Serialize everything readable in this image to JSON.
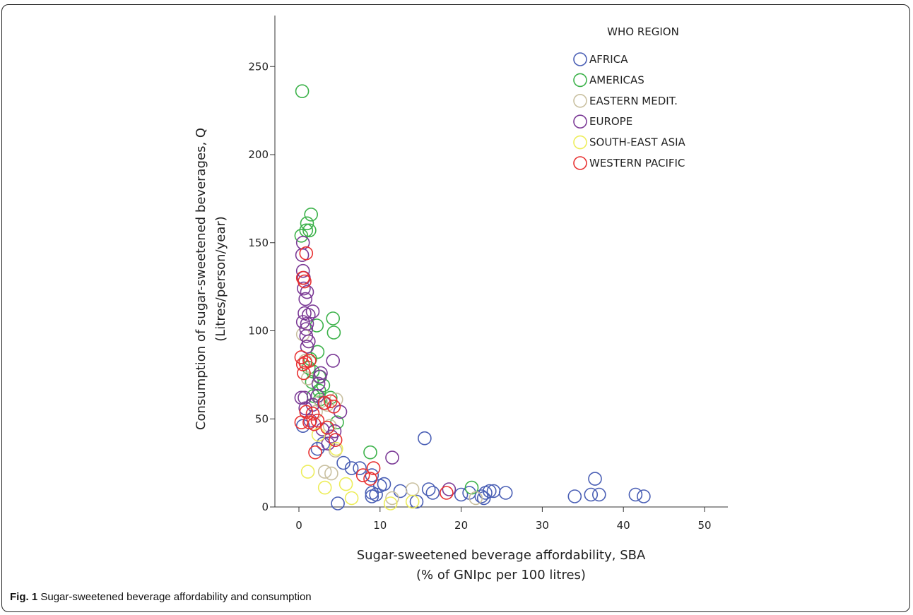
{
  "caption": {
    "label": "Fig. 1",
    "text": "Sugar-sweetened beverage affordability and consumption"
  },
  "chart_data": {
    "type": "scatter",
    "title": "",
    "xlabel_line1": "Sugar-sweetened beverage affordability, SBA",
    "xlabel_line2": "(% of GNIpc per 100 litres)",
    "ylabel_line1": "Consumption of sugar-sweetened beverages, Q",
    "ylabel_line2": "(Litres/person/year)",
    "xlim": [
      -3,
      53
    ],
    "ylim": [
      0,
      278
    ],
    "xticks": [
      0,
      10,
      20,
      30,
      40,
      50
    ],
    "yticks": [
      0,
      50,
      100,
      150,
      200,
      250
    ],
    "grid": false,
    "legend": {
      "title": "WHO REGION",
      "placement": "top-right"
    },
    "series": [
      {
        "name": "AFRICA",
        "color": "#4a5fb5",
        "points": [
          [
            15.5,
            39
          ],
          [
            36.5,
            16
          ],
          [
            5.5,
            25
          ],
          [
            6.5,
            22
          ],
          [
            7.5,
            22
          ],
          [
            9,
            18
          ],
          [
            10,
            12
          ],
          [
            10.5,
            13
          ],
          [
            9,
            8
          ],
          [
            9.5,
            7
          ],
          [
            12.5,
            9
          ],
          [
            16,
            10
          ],
          [
            16.5,
            8
          ],
          [
            20,
            7
          ],
          [
            21,
            8
          ],
          [
            22.5,
            6
          ],
          [
            23,
            8
          ],
          [
            23.5,
            9
          ],
          [
            24,
            9
          ],
          [
            25.5,
            8
          ],
          [
            34,
            6
          ],
          [
            36,
            7
          ],
          [
            37,
            7
          ],
          [
            41.5,
            7
          ],
          [
            42.5,
            6
          ],
          [
            14.5,
            3
          ],
          [
            4.8,
            2
          ],
          [
            0.5,
            46
          ],
          [
            3,
            36
          ],
          [
            2.3,
            33
          ],
          [
            9,
            6
          ],
          [
            22.8,
            5
          ]
        ]
      },
      {
        "name": "AMERICAS",
        "color": "#3cb24a",
        "points": [
          [
            0.4,
            236
          ],
          [
            1.5,
            166
          ],
          [
            1,
            161
          ],
          [
            1.3,
            157
          ],
          [
            0.3,
            154
          ],
          [
            0.9,
            157
          ],
          [
            4.2,
            107
          ],
          [
            4.3,
            99
          ],
          [
            2.2,
            103
          ],
          [
            2.3,
            88
          ],
          [
            1.4,
            84
          ],
          [
            1.2,
            79
          ],
          [
            1.7,
            77
          ],
          [
            2.5,
            74
          ],
          [
            3,
            69
          ],
          [
            1.8,
            63
          ],
          [
            3.9,
            62
          ],
          [
            2.6,
            61
          ],
          [
            8.8,
            31
          ],
          [
            21.3,
            11
          ],
          [
            4.7,
            48
          ],
          [
            1.6,
            71
          ],
          [
            2.5,
            66
          ]
        ]
      },
      {
        "name": "EASTERN MEDIT.",
        "color": "#c9c0a0",
        "points": [
          [
            0.5,
            98
          ],
          [
            1.2,
            94
          ],
          [
            0.8,
            83
          ],
          [
            2.7,
            60
          ],
          [
            4.6,
            61
          ],
          [
            3.5,
            58
          ],
          [
            3.2,
            20
          ],
          [
            4,
            19
          ],
          [
            4.5,
            32
          ],
          [
            11.5,
            5
          ],
          [
            14,
            10
          ],
          [
            21.8,
            5
          ],
          [
            1.1,
            73
          ],
          [
            2.1,
            54
          ],
          [
            3.8,
            46
          ]
        ]
      },
      {
        "name": "EUROPE",
        "color": "#7b3a96",
        "points": [
          [
            0.5,
            150
          ],
          [
            0.4,
            143
          ],
          [
            0.5,
            134
          ],
          [
            0.6,
            130
          ],
          [
            0.6,
            124
          ],
          [
            1,
            122
          ],
          [
            0.8,
            118
          ],
          [
            1.7,
            111
          ],
          [
            0.7,
            110
          ],
          [
            1.2,
            109
          ],
          [
            0.5,
            105
          ],
          [
            1,
            104
          ],
          [
            0.9,
            101
          ],
          [
            0.9,
            97
          ],
          [
            1.2,
            94
          ],
          [
            1,
            91
          ],
          [
            2.7,
            76
          ],
          [
            2.6,
            74
          ],
          [
            4.2,
            83
          ],
          [
            0.3,
            62
          ],
          [
            0.7,
            62
          ],
          [
            1.7,
            58
          ],
          [
            2.3,
            63
          ],
          [
            3.1,
            59
          ],
          [
            5.1,
            54
          ],
          [
            4.4,
            43
          ],
          [
            4,
            40
          ],
          [
            3.6,
            36
          ],
          [
            11.5,
            28
          ],
          [
            18.5,
            10
          ],
          [
            0.8,
            56
          ],
          [
            1.4,
            49
          ],
          [
            2.9,
            44
          ],
          [
            2.4,
            70
          ]
        ]
      },
      {
        "name": "SOUTH-EAST ASIA",
        "color": "#eded5a",
        "points": [
          [
            1.1,
            20
          ],
          [
            3.2,
            11
          ],
          [
            5.8,
            13
          ],
          [
            6.5,
            5
          ],
          [
            2.4,
            41
          ],
          [
            11.3,
            2
          ],
          [
            14,
            3
          ],
          [
            4.6,
            33
          ]
        ]
      },
      {
        "name": "WESTERN PACIFIC",
        "color": "#e83232",
        "points": [
          [
            0.9,
            144
          ],
          [
            0.5,
            130
          ],
          [
            0.7,
            128
          ],
          [
            0.3,
            85
          ],
          [
            0.5,
            81
          ],
          [
            0.6,
            76
          ],
          [
            0.8,
            82
          ],
          [
            0.9,
            54
          ],
          [
            1.3,
            48
          ],
          [
            0.3,
            48
          ],
          [
            2.3,
            49
          ],
          [
            1.9,
            47
          ],
          [
            3.2,
            59
          ],
          [
            3.9,
            60
          ],
          [
            4.3,
            57
          ],
          [
            3.5,
            45
          ],
          [
            4.5,
            38
          ],
          [
            2,
            31
          ],
          [
            7.9,
            18
          ],
          [
            9.2,
            22
          ],
          [
            8.8,
            16
          ],
          [
            18.2,
            8
          ],
          [
            1.3,
            83
          ],
          [
            1.7,
            53
          ]
        ]
      }
    ]
  }
}
